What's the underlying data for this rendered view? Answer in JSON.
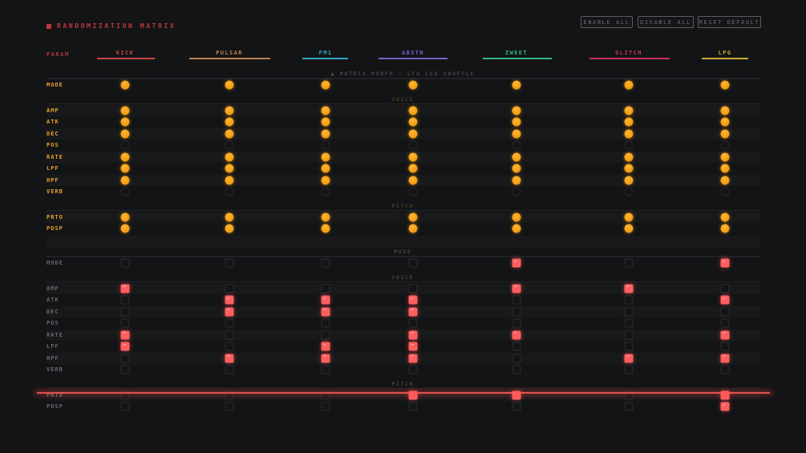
{
  "header": {
    "title": "RANDOMIZATION MATRIX",
    "title_icon": "square-icon"
  },
  "buttons": {
    "enable_all": "ENABLE ALL",
    "disable_all": "DISABLE ALL",
    "reset_default": "RESET DEFAULT"
  },
  "param_header": "PARAM",
  "morph_note": "▲ MATRIX MORPH — LFO LED SHUFFLE",
  "columns": [
    {
      "label": "KICK",
      "color": "#c84444"
    },
    {
      "label": "PULSAR",
      "color": "#c08048"
    },
    {
      "label": "FM1",
      "color": "#34a4c4"
    },
    {
      "label": "ABSTR",
      "color": "#7262c4"
    },
    {
      "label": "ZWEET",
      "color": "#34b484"
    },
    {
      "label": "GLITCH",
      "color": "#c43456"
    },
    {
      "label": "LPG",
      "color": "#c4a834"
    }
  ],
  "colors": {
    "orange": "#f5a020",
    "red": "#ff5e5e",
    "label_orange": "#e8a030",
    "label_grey": "#66686c"
  },
  "matrix_top": {
    "sections": [
      {
        "label": "",
        "rows": [
          {
            "param": "MODE",
            "values": [
              1,
              1,
              1,
              1,
              1,
              1,
              1
            ]
          }
        ]
      },
      {
        "label": "VOICE",
        "rows": [
          {
            "param": "AMP",
            "values": [
              1,
              1,
              1,
              1,
              1,
              1,
              1
            ]
          },
          {
            "param": "ATK",
            "values": [
              1,
              1,
              1,
              1,
              1,
              1,
              1
            ]
          },
          {
            "param": "DEC",
            "values": [
              1,
              1,
              1,
              1,
              1,
              1,
              1
            ]
          },
          {
            "param": "POS",
            "values": [
              0,
              0,
              0,
              0,
              0,
              0,
              0
            ]
          },
          {
            "param": "RATE",
            "values": [
              1,
              1,
              1,
              1,
              1,
              1,
              1
            ]
          },
          {
            "param": "LPF",
            "values": [
              1,
              1,
              1,
              1,
              1,
              1,
              1
            ]
          },
          {
            "param": "HPF",
            "values": [
              1,
              1,
              1,
              1,
              1,
              1,
              1
            ]
          },
          {
            "param": "VERB",
            "values": [
              0,
              0,
              0,
              0,
              0,
              0,
              0
            ]
          }
        ]
      },
      {
        "label": "PITCH",
        "rows": [
          {
            "param": "PRTO",
            "values": [
              1,
              1,
              1,
              1,
              1,
              1,
              1
            ]
          },
          {
            "param": "PDSP",
            "values": [
              1,
              1,
              1,
              1,
              1,
              1,
              1
            ]
          }
        ]
      }
    ]
  },
  "matrix_bottom": {
    "sections": [
      {
        "label": "MODE",
        "rows": [
          {
            "param": "MODE",
            "values": [
              0,
              0,
              0,
              0,
              1,
              0,
              1
            ]
          }
        ]
      },
      {
        "label": "VOICE",
        "rows": [
          {
            "param": "AMP",
            "values": [
              1,
              0,
              0,
              0,
              1,
              1,
              0
            ]
          },
          {
            "param": "ATK",
            "values": [
              0,
              1,
              1,
              1,
              0,
              0,
              1
            ]
          },
          {
            "param": "DEC",
            "values": [
              0,
              1,
              1,
              1,
              0,
              0,
              0
            ]
          },
          {
            "param": "POS",
            "values": [
              0,
              0,
              0,
              0,
              0,
              0,
              0
            ]
          },
          {
            "param": "RATE",
            "values": [
              1,
              0,
              0,
              1,
              1,
              0,
              1
            ]
          },
          {
            "param": "LPF",
            "values": [
              1,
              0,
              1,
              1,
              0,
              0,
              0
            ]
          },
          {
            "param": "HPF",
            "values": [
              0,
              1,
              1,
              1,
              0,
              1,
              1
            ]
          },
          {
            "param": "VERB",
            "values": [
              0,
              0,
              0,
              0,
              0,
              0,
              0
            ]
          }
        ]
      },
      {
        "label": "PITCH",
        "rows": [
          {
            "param": "PRTO",
            "values": [
              0,
              0,
              0,
              1,
              1,
              0,
              1
            ]
          },
          {
            "param": "PDSP",
            "values": [
              0,
              0,
              0,
              0,
              0,
              0,
              1
            ]
          }
        ]
      }
    ]
  }
}
